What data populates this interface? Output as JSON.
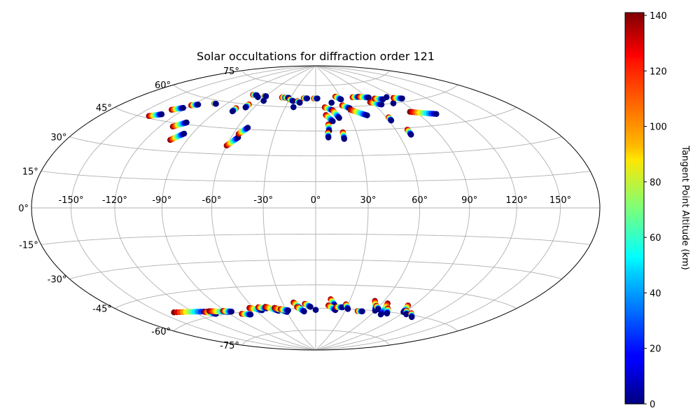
{
  "chart_data": {
    "type": "scatter",
    "projection": "hammer",
    "title": "Solar occultations for diffraction order 121",
    "grid": true,
    "lon_ticks": [
      -150,
      -120,
      -90,
      -60,
      -30,
      0,
      30,
      60,
      90,
      120,
      150
    ],
    "lat_ticks": [
      -75,
      -60,
      -45,
      -30,
      -15,
      0,
      15,
      30,
      45,
      60,
      75
    ],
    "lon_tick_labels": [
      "-150°",
      "-120°",
      "-90°",
      "-60°",
      "-30°",
      "0°",
      "30°",
      "60°",
      "90°",
      "120°",
      "150°"
    ],
    "lat_tick_labels": [
      "-75°",
      "-60°",
      "-45°",
      "-30°",
      "-15°",
      "0°",
      "15°",
      "30°",
      "45°",
      "60°",
      "75°"
    ],
    "colorbar": {
      "label": "Tangent Point Altitude (km)",
      "colormap": "jet",
      "range": [
        0,
        141
      ],
      "ticks": [
        0,
        20,
        40,
        60,
        80,
        100,
        120,
        140
      ],
      "tick_labels": [
        "0",
        "20",
        "40",
        "60",
        "80",
        "100",
        "120",
        "140"
      ]
    },
    "tracks": [
      {
        "lon": [
          -140,
          -132
        ],
        "lat": [
          46,
          48
        ]
      },
      {
        "lon": [
          -130,
          -123
        ],
        "lat": [
          51,
          53
        ]
      },
      {
        "lon": [
          -120,
          -115
        ],
        "lat": [
          55,
          56
        ]
      },
      {
        "lon": [
          -110,
          -103
        ],
        "lat": [
          43,
          46
        ]
      },
      {
        "lon": [
          -102,
          -96
        ],
        "lat": [
          36,
          40
        ]
      },
      {
        "lon": [
          -102,
          -100
        ],
        "lat": [
          58,
          58
        ]
      },
      {
        "lon": [
          -76,
          -76
        ],
        "lat": [
          57,
          55
        ]
      },
      {
        "lon": [
          -68,
          -68
        ],
        "lat": [
          60,
          58
        ]
      },
      {
        "lon": [
          -77,
          -72
        ],
        "lat": [
          66,
          66
        ]
      },
      {
        "lon": [
          -68,
          -68
        ],
        "lat": [
          65,
          65
        ]
      },
      {
        "lon": [
          -62,
          -60
        ],
        "lat": [
          66,
          66
        ]
      },
      {
        "lon": [
          -57,
          -57
        ],
        "lat": [
          63,
          63
        ]
      },
      {
        "lon": [
          -60,
          -55
        ],
        "lat": [
          35,
          40
        ]
      },
      {
        "lon": [
          -56,
          -52
        ],
        "lat": [
          42,
          46
        ]
      },
      {
        "lon": [
          -40,
          -35
        ],
        "lat": [
          66,
          66
        ]
      },
      {
        "lon": [
          -36,
          -32
        ],
        "lat": [
          66,
          66
        ]
      },
      {
        "lon": [
          -30,
          -25
        ],
        "lat": [
          65,
          64
        ]
      },
      {
        "lon": [
          -22,
          -22
        ],
        "lat": [
          60,
          60
        ]
      },
      {
        "lon": [
          -20,
          -17
        ],
        "lat": [
          64,
          63
        ]
      },
      {
        "lon": [
          -14,
          -10
        ],
        "lat": [
          66,
          66
        ]
      },
      {
        "lon": [
          -2,
          2
        ],
        "lat": [
          66,
          66
        ]
      },
      {
        "lon": [
          9,
          16
        ],
        "lat": [
          60,
          58
        ]
      },
      {
        "lon": [
          9,
          14
        ],
        "lat": [
          55,
          51
        ]
      },
      {
        "lon": [
          16,
          20
        ],
        "lat": [
          58,
          53
        ]
      },
      {
        "lon": [
          10,
          10
        ],
        "lat": [
          49,
          45
        ]
      },
      {
        "lon": [
          9,
          9
        ],
        "lat": [
          44,
          41
        ]
      },
      {
        "lon": [
          20,
          20
        ],
        "lat": [
          44,
          40
        ]
      },
      {
        "lon": [
          17,
          17
        ],
        "lat": [
          63,
          63
        ]
      },
      {
        "lon": [
          24,
          29
        ],
        "lat": [
          67,
          65
        ]
      },
      {
        "lon": [
          27,
          33
        ],
        "lat": [
          61,
          59
        ]
      },
      {
        "lon": [
          33,
          45
        ],
        "lat": [
          58,
          54
        ]
      },
      {
        "lon": [
          44,
          52
        ],
        "lat": [
          66,
          66
        ]
      },
      {
        "lon": [
          52,
          62
        ],
        "lat": [
          66,
          65
        ]
      },
      {
        "lon": [
          58,
          67
        ],
        "lat": [
          62,
          60
        ]
      },
      {
        "lon": [
          62,
          62
        ],
        "lat": [
          52,
          50
        ]
      },
      {
        "lon": [
          67,
          75
        ],
        "lat": [
          64,
          63
        ]
      },
      {
        "lon": [
          69,
          69
        ],
        "lat": [
          44,
          41
        ]
      },
      {
        "lon": [
          82,
          82
        ],
        "lat": [
          64,
          64
        ]
      },
      {
        "lon": [
          80,
          80
        ],
        "lat": [
          60,
          60
        ]
      },
      {
        "lon": [
          88,
          96
        ],
        "lat": [
          63,
          62
        ]
      },
      {
        "lon": [
          85,
          105
        ],
        "lat": [
          54,
          51
        ]
      },
      {
        "lon": [
          -138,
          -108
        ],
        "lat": [
          -54,
          -57
        ]
      },
      {
        "lon": [
          -110,
          -103
        ],
        "lat": [
          -57,
          -59
        ]
      },
      {
        "lon": [
          -105,
          -88
        ],
        "lat": [
          -57,
          -59
        ]
      },
      {
        "lon": [
          -92,
          -85
        ],
        "lat": [
          -58,
          -59
        ]
      },
      {
        "lon": [
          -78,
          -70
        ],
        "lat": [
          -61,
          -62
        ]
      },
      {
        "lon": [
          -64,
          -54
        ],
        "lat": [
          -58,
          -60
        ]
      },
      {
        "lon": [
          -55,
          -48
        ],
        "lat": [
          -58,
          -59
        ]
      },
      {
        "lon": [
          -48,
          -38
        ],
        "lat": [
          -58,
          -61
        ]
      },
      {
        "lon": [
          -40,
          -30
        ],
        "lat": [
          -59,
          -62
        ]
      },
      {
        "lon": [
          -35,
          -28
        ],
        "lat": [
          -60,
          -61
        ]
      },
      {
        "lon": [
          -20,
          -15
        ],
        "lat": [
          -56,
          -60
        ]
      },
      {
        "lon": [
          -18,
          -12
        ],
        "lat": [
          -59,
          -62
        ]
      },
      {
        "lon": [
          -10,
          -5
        ],
        "lat": [
          -57,
          -59
        ]
      },
      {
        "lon": [
          0,
          0
        ],
        "lat": [
          -61,
          -61
        ]
      },
      {
        "lon": [
          13,
          18
        ],
        "lat": [
          -54,
          -58
        ]
      },
      {
        "lon": [
          12,
          20
        ],
        "lat": [
          -58,
          -61
        ]
      },
      {
        "lon": [
          20,
          26
        ],
        "lat": [
          -59,
          -59
        ]
      },
      {
        "lon": [
          28,
          32
        ],
        "lat": [
          -57,
          -60
        ]
      },
      {
        "lon": [
          43,
          48
        ],
        "lat": [
          -61,
          -61
        ]
      },
      {
        "lon": [
          52,
          60
        ],
        "lat": [
          -54,
          -60
        ]
      },
      {
        "lon": [
          57,
          62
        ],
        "lat": [
          -57,
          -59
        ]
      },
      {
        "lon": [
          65,
          70
        ],
        "lat": [
          -55,
          -62
        ]
      },
      {
        "lon": [
          70,
          75
        ],
        "lat": [
          -58,
          -61
        ]
      },
      {
        "lon": [
          85,
          89
        ],
        "lat": [
          -55,
          -59
        ]
      },
      {
        "lon": [
          90,
          95
        ],
        "lat": [
          -58,
          -60
        ]
      },
      {
        "lon": [
          98,
          105
        ],
        "lat": [
          -59,
          -61
        ]
      }
    ]
  }
}
